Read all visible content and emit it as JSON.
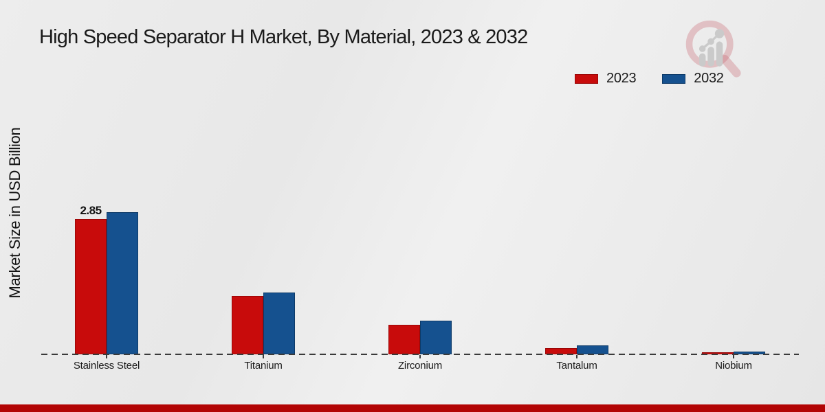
{
  "title": "High Speed Separator H Market, By Material, 2023 & 2032",
  "y_axis_label": "Market Size in USD Billion",
  "colors": {
    "series_2023": "#c80b0b",
    "series_2023_border": "#9c0606",
    "series_2032": "#15518f",
    "series_2032_border": "#0d3a68",
    "baseline": "#3a3a3a",
    "footer_strip": "#b20404",
    "background": "#eaeaea"
  },
  "chart_data": {
    "type": "bar",
    "categories": [
      "Stainless Steel",
      "Titanium",
      "Zirconium",
      "Tantalum",
      "Niobium"
    ],
    "series": [
      {
        "name": "2023",
        "color": "#c80b0b",
        "border": "#9c0606",
        "values": [
          2.85,
          1.23,
          0.62,
          0.13,
          0.04
        ]
      },
      {
        "name": "2032",
        "color": "#15518f",
        "border": "#0d3a68",
        "values": [
          3.0,
          1.3,
          0.71,
          0.19,
          0.06
        ]
      }
    ],
    "data_labels": [
      {
        "series": "2023",
        "category": "Stainless Steel",
        "text": "2.85"
      }
    ],
    "title": "High Speed Separator H Market, By Material, 2023 & 2032",
    "xlabel": "",
    "ylabel": "Market Size in USD Billion",
    "ylim": [
      0,
      3.2
    ],
    "grid": false,
    "legend_position": "top-right",
    "baseline_style": "dashed"
  },
  "logo": {
    "name": "market-research-future-watermark"
  }
}
